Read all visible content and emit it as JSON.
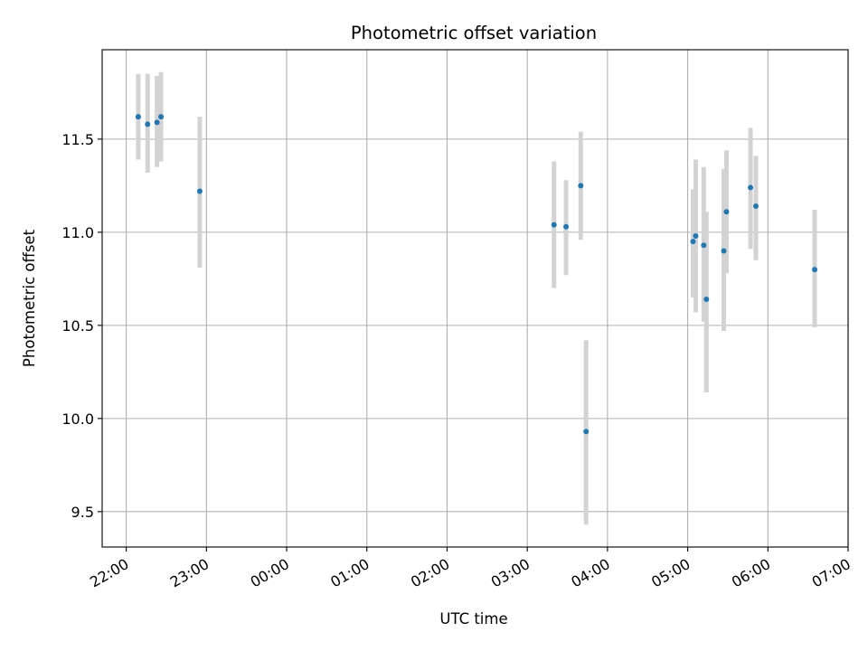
{
  "chart_data": {
    "type": "scatter",
    "title": "Photometric offset variation",
    "xlabel": "UTC time",
    "ylabel": "Photometric offset",
    "x_axis": {
      "kind": "time",
      "range": [
        "21:42",
        "07:00"
      ],
      "ticks": [
        "22:00",
        "23:00",
        "00:00",
        "01:00",
        "02:00",
        "03:00",
        "04:00",
        "05:00",
        "06:00",
        "07:00"
      ]
    },
    "y_axis": {
      "range": [
        9.31,
        11.98
      ],
      "ticks": [
        9.5,
        10.0,
        10.5,
        11.0,
        11.5
      ],
      "tick_labels": [
        "9.5",
        "10.0",
        "10.5",
        "11.0",
        "11.5"
      ]
    },
    "grid": true,
    "point_color": "#1f77b4",
    "errorbar_color": "#d3d3d3",
    "points": [
      {
        "x": "22:09",
        "y": 11.62,
        "yerr_low": 11.39,
        "yerr_high": 11.85
      },
      {
        "x": "22:16",
        "y": 11.58,
        "yerr_low": 11.32,
        "yerr_high": 11.85
      },
      {
        "x": "22:23",
        "y": 11.59,
        "yerr_low": 11.35,
        "yerr_high": 11.84
      },
      {
        "x": "22:26",
        "y": 11.62,
        "yerr_low": 11.38,
        "yerr_high": 11.86
      },
      {
        "x": "22:55",
        "y": 11.22,
        "yerr_low": 10.81,
        "yerr_high": 11.62
      },
      {
        "x": "03:20",
        "y": 11.04,
        "yerr_low": 10.7,
        "yerr_high": 11.38
      },
      {
        "x": "03:29",
        "y": 11.03,
        "yerr_low": 10.77,
        "yerr_high": 11.28
      },
      {
        "x": "03:40",
        "y": 11.25,
        "yerr_low": 10.96,
        "yerr_high": 11.54
      },
      {
        "x": "03:44",
        "y": 9.93,
        "yerr_low": 9.43,
        "yerr_high": 10.42
      },
      {
        "x": "05:04",
        "y": 10.95,
        "yerr_low": 10.65,
        "yerr_high": 11.23
      },
      {
        "x": "05:06",
        "y": 10.98,
        "yerr_low": 10.57,
        "yerr_high": 11.39
      },
      {
        "x": "05:12",
        "y": 10.93,
        "yerr_low": 10.52,
        "yerr_high": 11.35
      },
      {
        "x": "05:14",
        "y": 10.64,
        "yerr_low": 10.14,
        "yerr_high": 11.11
      },
      {
        "x": "05:27",
        "y": 10.9,
        "yerr_low": 10.47,
        "yerr_high": 11.34
      },
      {
        "x": "05:29",
        "y": 11.11,
        "yerr_low": 10.78,
        "yerr_high": 11.44
      },
      {
        "x": "05:47",
        "y": 11.24,
        "yerr_low": 10.91,
        "yerr_high": 11.56
      },
      {
        "x": "05:51",
        "y": 11.14,
        "yerr_low": 10.85,
        "yerr_high": 11.41
      },
      {
        "x": "06:35",
        "y": 10.8,
        "yerr_low": 10.49,
        "yerr_high": 11.12
      }
    ]
  }
}
